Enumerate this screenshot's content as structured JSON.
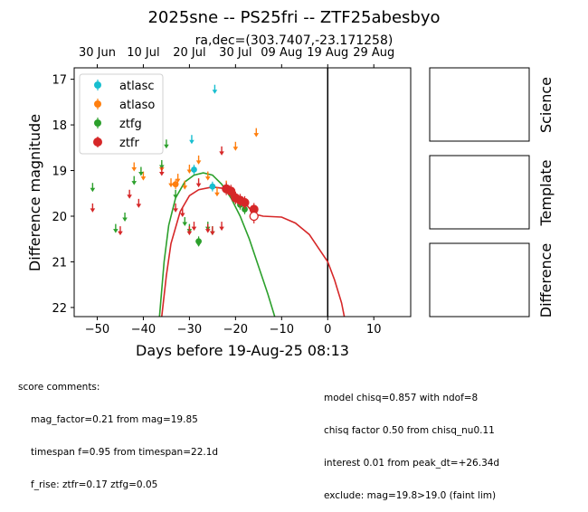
{
  "chart_data": {
    "type": "scatter",
    "title": "2025sne -- PS25fri -- ZTF25abesbyo",
    "subtitle": "ra,dec=(303.7407,-23.171258)",
    "xlabel": "Days before 19-Aug-25 08:13",
    "ylabel": "Difference magnitude",
    "xlim": [
      -55,
      18
    ],
    "ylim": [
      22.2,
      16.75
    ],
    "y_inverted": true,
    "x_ticks": [
      -50,
      -40,
      -30,
      -20,
      -10,
      0,
      10
    ],
    "y_ticks": [
      17,
      18,
      19,
      20,
      21,
      22
    ],
    "top_date_ticks": [
      {
        "label": "30 Jun",
        "x": -50
      },
      {
        "label": "10 Jul",
        "x": -40
      },
      {
        "label": "20 Jul",
        "x": -30
      },
      {
        "label": "30 Jul",
        "x": -20
      },
      {
        "label": "09 Aug",
        "x": -10
      },
      {
        "label": "19 Aug",
        "x": 0
      },
      {
        "label": "29 Aug",
        "x": 10
      }
    ],
    "vline_x": 0,
    "legend_position": "upper-left",
    "series": [
      {
        "name": "atlasc",
        "color": "#17becf",
        "upper_limits": [
          {
            "x": -24.5,
            "y": 17.2
          },
          {
            "x": -29.5,
            "y": 18.3
          }
        ],
        "detections": [
          {
            "x": -29,
            "y": 18.98
          },
          {
            "x": -25,
            "y": 19.35
          }
        ]
      },
      {
        "name": "atlaso",
        "color": "#ff7f0e",
        "upper_limits": [
          {
            "x": -42,
            "y": 18.9
          },
          {
            "x": -40,
            "y": 19.1
          },
          {
            "x": -36,
            "y": 18.9
          },
          {
            "x": -34,
            "y": 19.25
          },
          {
            "x": -32.5,
            "y": 19.15
          },
          {
            "x": -31,
            "y": 19.3
          },
          {
            "x": -30,
            "y": 18.95
          },
          {
            "x": -28,
            "y": 18.75
          },
          {
            "x": -26,
            "y": 19.1
          },
          {
            "x": -24,
            "y": 19.45
          },
          {
            "x": -22,
            "y": 19.3
          },
          {
            "x": -20,
            "y": 18.45
          },
          {
            "x": -15.5,
            "y": 18.15
          }
        ],
        "detections": [
          {
            "x": -33,
            "y": 19.3
          }
        ]
      },
      {
        "name": "ztfg",
        "color": "#2ca02c",
        "upper_limits": [
          {
            "x": -51,
            "y": 19.35
          },
          {
            "x": -46,
            "y": 20.25
          },
          {
            "x": -44,
            "y": 20.0
          },
          {
            "x": -42,
            "y": 19.2
          },
          {
            "x": -40.5,
            "y": 19.0
          },
          {
            "x": -36,
            "y": 18.85
          },
          {
            "x": -35,
            "y": 18.4
          },
          {
            "x": -33,
            "y": 19.5
          },
          {
            "x": -31,
            "y": 20.1
          },
          {
            "x": -30,
            "y": 20.25
          },
          {
            "x": -28,
            "y": 20.55
          },
          {
            "x": -26,
            "y": 20.2
          },
          {
            "x": -25,
            "y": 20.3
          }
        ],
        "detections": [
          {
            "x": -28,
            "y": 20.55
          },
          {
            "x": -22,
            "y": 19.4
          },
          {
            "x": -21,
            "y": 19.5
          },
          {
            "x": -20,
            "y": 19.6
          },
          {
            "x": -19,
            "y": 19.75
          },
          {
            "x": -18,
            "y": 19.85
          }
        ]
      },
      {
        "name": "ztfr",
        "color": "#d62728",
        "upper_limits": [
          {
            "x": -51,
            "y": 19.8
          },
          {
            "x": -45,
            "y": 20.3
          },
          {
            "x": -43,
            "y": 19.5
          },
          {
            "x": -41,
            "y": 19.7
          },
          {
            "x": -36,
            "y": 19.0
          },
          {
            "x": -33,
            "y": 19.8
          },
          {
            "x": -31.5,
            "y": 19.9
          },
          {
            "x": -30,
            "y": 20.3
          },
          {
            "x": -29,
            "y": 20.2
          },
          {
            "x": -28,
            "y": 19.25
          },
          {
            "x": -26,
            "y": 20.25
          },
          {
            "x": -25,
            "y": 20.3
          },
          {
            "x": -23,
            "y": 18.55
          },
          {
            "x": -23,
            "y": 20.2
          }
        ],
        "detections": [
          {
            "x": -22,
            "y": 19.4
          },
          {
            "x": -21,
            "y": 19.45
          },
          {
            "x": -20,
            "y": 19.6
          },
          {
            "x": -19,
            "y": 19.65
          },
          {
            "x": -18,
            "y": 19.7
          },
          {
            "x": -16,
            "y": 19.85
          }
        ],
        "open_points": [
          {
            "x": -16,
            "y": 20.0
          }
        ]
      }
    ],
    "model_curves": [
      {
        "color": "#2ca02c",
        "points": [
          [
            -36.5,
            22.2
          ],
          [
            -35.5,
            21.0
          ],
          [
            -34.5,
            20.2
          ],
          [
            -33,
            19.6
          ],
          [
            -31,
            19.25
          ],
          [
            -29,
            19.1
          ],
          [
            -27,
            19.05
          ],
          [
            -25,
            19.1
          ],
          [
            -23,
            19.3
          ],
          [
            -21,
            19.6
          ],
          [
            -19,
            20.0
          ],
          [
            -17,
            20.5
          ],
          [
            -15,
            21.1
          ],
          [
            -13,
            21.7
          ],
          [
            -11.5,
            22.2
          ]
        ]
      },
      {
        "color": "#d62728",
        "points": [
          [
            -36,
            22.2
          ],
          [
            -35,
            21.3
          ],
          [
            -34,
            20.6
          ],
          [
            -32,
            19.9
          ],
          [
            -30,
            19.55
          ],
          [
            -28,
            19.42
          ],
          [
            -25,
            19.36
          ],
          [
            -22,
            19.4
          ],
          [
            -20,
            19.5
          ],
          [
            -18,
            19.7
          ],
          [
            -16,
            19.95
          ],
          [
            -14,
            20.0
          ],
          [
            -10,
            20.02
          ],
          [
            -7,
            20.15
          ],
          [
            -4,
            20.4
          ],
          [
            -2,
            20.7
          ],
          [
            0,
            21.0
          ],
          [
            1.5,
            21.4
          ],
          [
            3,
            21.9
          ],
          [
            3.6,
            22.2
          ]
        ]
      }
    ]
  },
  "panels": [
    {
      "label": "Science"
    },
    {
      "label": "Template"
    },
    {
      "label": "Difference"
    }
  ],
  "score_comments": {
    "header": "score comments:",
    "lines": [
      "mag_factor=0.21 from mag=19.85",
      "timespan f=0.95 from timespan=22.1d",
      "f_rise: ztfr=0.17 ztfg=0.05"
    ]
  },
  "model_comments": {
    "lines": [
      "model chisq=0.857 with ndof=8",
      "chisq factor 0.50 from chisq_nu0.11",
      "interest 0.01 from peak_dt=+26.34d",
      "exclude: mag=19.8>19.0 (faint lim)"
    ]
  }
}
